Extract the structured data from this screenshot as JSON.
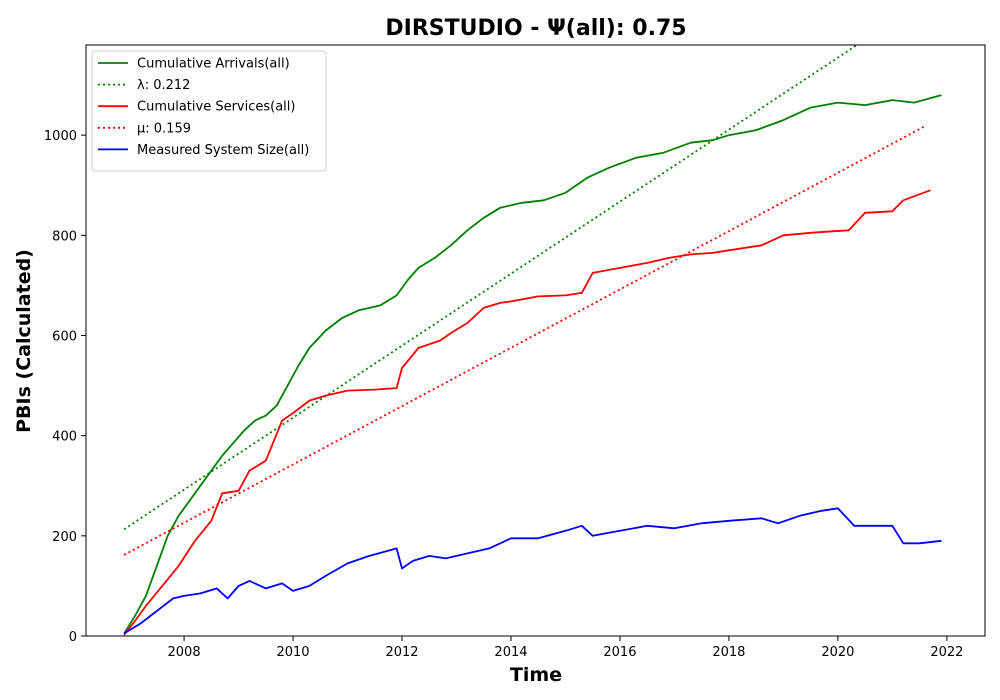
{
  "chart_data": {
    "type": "line",
    "title": "DIRSTUDIO -  Ψ(all): 0.75",
    "xlabel": "Time",
    "ylabel": "PBIs (Calculated)",
    "xlim": [
      2006.2,
      2022.7
    ],
    "ylim": [
      0,
      1180
    ],
    "x_ticks": [
      2008,
      2010,
      2012,
      2014,
      2016,
      2018,
      2020,
      2022
    ],
    "y_ticks": [
      0,
      200,
      400,
      600,
      800,
      1000
    ],
    "grid": false,
    "legend_placement": "top-left",
    "series": [
      {
        "name": "Cumulative Arrivals(all)",
        "style": "solid",
        "color": "#008000",
        "x": [
          2006.9,
          2007.1,
          2007.3,
          2007.5,
          2007.7,
          2007.9,
          2008.1,
          2008.3,
          2008.5,
          2008.7,
          2008.9,
          2009.1,
          2009.3,
          2009.5,
          2009.7,
          2009.9,
          2010.1,
          2010.3,
          2010.6,
          2010.9,
          2011.2,
          2011.6,
          2011.9,
          2012.1,
          2012.3,
          2012.6,
          2012.9,
          2013.2,
          2013.5,
          2013.8,
          2014.2,
          2014.6,
          2015.0,
          2015.4,
          2015.8,
          2016.3,
          2016.8,
          2017.3,
          2017.7,
          2018.0,
          2018.5,
          2019.0,
          2019.5,
          2020.0,
          2020.5,
          2021.0,
          2021.4,
          2021.9
        ],
        "y": [
          5,
          40,
          80,
          140,
          200,
          240,
          270,
          300,
          330,
          360,
          385,
          410,
          430,
          440,
          460,
          500,
          540,
          575,
          610,
          635,
          650,
          660,
          680,
          710,
          735,
          755,
          780,
          810,
          835,
          855,
          865,
          870,
          885,
          915,
          935,
          955,
          965,
          985,
          990,
          1000,
          1010,
          1030,
          1055,
          1065,
          1060,
          1070,
          1065,
          1080
        ]
      },
      {
        "name": "λ: 0.212",
        "style": "dotted",
        "color": "#008000",
        "x": [
          2006.9,
          2020.35
        ],
        "y": [
          213,
          1180
        ]
      },
      {
        "name": "Cumulative Services(all)",
        "style": "solid",
        "color": "#ff0000",
        "x": [
          2006.9,
          2007.1,
          2007.3,
          2007.6,
          2007.9,
          2008.2,
          2008.5,
          2008.7,
          2009.0,
          2009.2,
          2009.5,
          2009.8,
          2010.0,
          2010.3,
          2010.6,
          2011.0,
          2011.5,
          2011.9,
          2012.0,
          2012.3,
          2012.7,
          2012.9,
          2013.2,
          2013.5,
          2013.8,
          2014.0,
          2014.5,
          2015.0,
          2015.3,
          2015.5,
          2016.0,
          2016.5,
          2016.9,
          2017.3,
          2017.7,
          2018.0,
          2018.6,
          2019.0,
          2019.5,
          2019.9,
          2020.2,
          2020.5,
          2021.0,
          2021.2,
          2021.7
        ],
        "y": [
          2,
          30,
          60,
          100,
          140,
          190,
          230,
          285,
          290,
          330,
          350,
          430,
          445,
          470,
          480,
          490,
          492,
          495,
          535,
          575,
          590,
          605,
          625,
          655,
          665,
          668,
          678,
          680,
          685,
          725,
          735,
          745,
          755,
          762,
          765,
          770,
          780,
          800,
          805,
          808,
          810,
          845,
          848,
          870,
          890
        ]
      },
      {
        "name": "μ: 0.159",
        "style": "dotted",
        "color": "#ff0000",
        "x": [
          2006.9,
          2021.6
        ],
        "y": [
          162,
          1018
        ]
      },
      {
        "name": "Measured System Size(all)",
        "style": "solid",
        "color": "#0000ff",
        "x": [
          2006.9,
          2007.2,
          2007.5,
          2007.8,
          2008.0,
          2008.3,
          2008.6,
          2008.8,
          2009.0,
          2009.2,
          2009.5,
          2009.8,
          2010.0,
          2010.3,
          2010.6,
          2011.0,
          2011.4,
          2011.9,
          2012.0,
          2012.2,
          2012.5,
          2012.8,
          2013.2,
          2013.6,
          2014.0,
          2014.5,
          2015.0,
          2015.3,
          2015.5,
          2016.0,
          2016.5,
          2017.0,
          2017.5,
          2018.0,
          2018.6,
          2018.9,
          2019.3,
          2019.7,
          2020.0,
          2020.3,
          2020.6,
          2021.0,
          2021.2,
          2021.5,
          2021.9
        ],
        "y": [
          5,
          25,
          50,
          75,
          80,
          85,
          95,
          75,
          100,
          110,
          95,
          105,
          90,
          100,
          120,
          145,
          160,
          175,
          135,
          150,
          160,
          155,
          165,
          175,
          195,
          195,
          210,
          220,
          200,
          210,
          220,
          215,
          225,
          230,
          235,
          225,
          240,
          250,
          255,
          220,
          220,
          220,
          185,
          185,
          190
        ]
      }
    ]
  }
}
